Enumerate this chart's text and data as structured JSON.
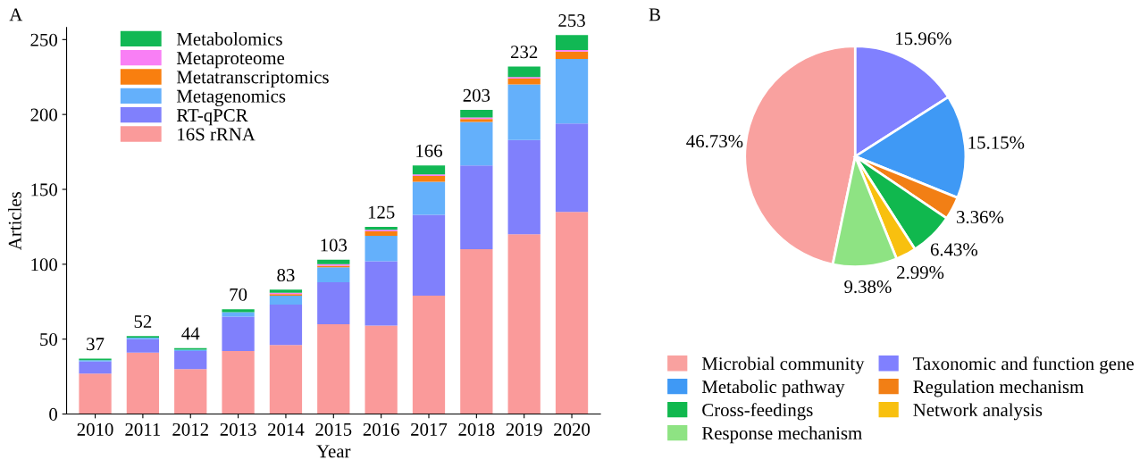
{
  "chart_data": [
    {
      "type": "bar",
      "stacked": true,
      "annotations": [
        "A"
      ],
      "xlabel": "Year",
      "ylabel": "Articles",
      "categories": [
        "2010",
        "2011",
        "2012",
        "2013",
        "2014",
        "2015",
        "2016",
        "2017",
        "2018",
        "2019",
        "2020"
      ],
      "series": [
        {
          "name": "16S rRNA",
          "color": "#fa9a9a",
          "values": [
            27,
            41,
            30,
            42,
            46,
            60,
            59,
            79,
            110,
            120,
            135
          ]
        },
        {
          "name": "RT-qPCR",
          "color": "#8080fc",
          "values": [
            8,
            9,
            12,
            23,
            27,
            28,
            43,
            54,
            56,
            63,
            59
          ]
        },
        {
          "name": "Metagenomics",
          "color": "#64b0fb",
          "values": [
            1,
            1,
            1,
            3,
            6,
            10,
            17,
            22,
            29,
            37,
            43
          ]
        },
        {
          "name": "Metatranscriptomics",
          "color": "#f97f0f",
          "values": [
            0,
            0,
            0,
            0,
            1,
            1,
            3,
            4,
            2,
            4,
            5
          ]
        },
        {
          "name": "Metaproteome",
          "color": "#f97ff5",
          "values": [
            0,
            0,
            0,
            0,
            1,
            1,
            1,
            1,
            1,
            1,
            1
          ]
        },
        {
          "name": "Metabolomics",
          "color": "#11b854",
          "values": [
            1,
            1,
            1,
            2,
            2,
            3,
            2,
            6,
            5,
            7,
            10
          ]
        }
      ],
      "totals": [
        "37",
        "52",
        "44",
        "70",
        "83",
        "103",
        "125",
        "166",
        "203",
        "232",
        "253"
      ],
      "ylim": [
        0,
        258
      ],
      "yticks": [
        0,
        50,
        100,
        150,
        200,
        250
      ],
      "grid": false,
      "legend": "top left"
    },
    {
      "type": "pie",
      "annotations": [
        "B"
      ],
      "categories": [
        "Microbial community",
        "Taxonomic and function gene",
        "Metabolic pathway",
        "Regulation mechanism",
        "Cross-feedings",
        "Network analysis",
        "Response mechanism"
      ],
      "values": [
        46.73,
        15.96,
        15.15,
        3.36,
        6.43,
        2.99,
        9.38
      ],
      "value_labels": [
        "46.73%",
        "15.96%",
        "15.15%",
        "3.36%",
        "6.43%",
        "2.99%",
        "9.38%"
      ],
      "colors": [
        "#f9a19f",
        "#8080ff",
        "#3f99f5",
        "#f27f15",
        "#10b84e",
        "#f8c00f",
        "#8ee383"
      ],
      "legend": "bottom"
    }
  ]
}
